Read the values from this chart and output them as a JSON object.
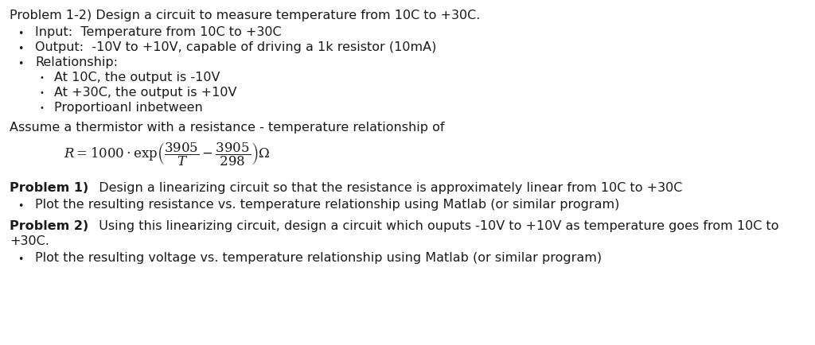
{
  "background_color": "#ffffff",
  "text_color": "#1a1a1a",
  "title_line": "Problem 1-2) Design a circuit to measure temperature from 10C to +30C.",
  "bullet1": "Input:  Temperature from 10C to +30C",
  "bullet2": "Output:  -10V to +10V, capable of driving a 1k resistor (10mA)",
  "bullet3": "Relationship:",
  "sub_bullet1": "At 10C, the output is -10V",
  "sub_bullet2": "At +30C, the output is +10V",
  "sub_bullet3": "Proportioanl inbetween",
  "assume_line": "Assume a thermistor with a resistance - temperature relationship of",
  "prob1_bold": "Problem 1)",
  "prob1_rest": "  Design a linearizing circuit so that the resistance is approximately linear from 10C to +30C",
  "prob1_bullet": "Plot the resulting resistance vs. temperature relationship using Matlab (or similar program)",
  "prob2_bold": "Problem 2)",
  "prob2_line1": "  Using this linearizing circuit, design a circuit which ouputs -10V to +10V as temperature goes from 10C to",
  "prob2_line2": "+30C.",
  "prob2_bullet": "Plot the resulting voltage vs. temperature relationship using Matlab (or similar program)",
  "font_size": 11.5
}
